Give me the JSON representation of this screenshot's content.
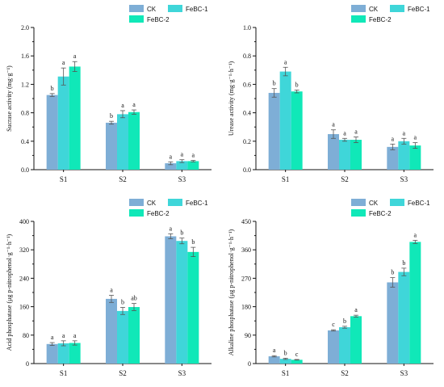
{
  "colors": {
    "CK": "#7eaed6",
    "FeBC-1": "#3fd6d9",
    "FeBC-2": "#10e8b8",
    "axis": "#111111",
    "errorbar": "#555555"
  },
  "chart_data": [
    {
      "type": "bar",
      "ylabel": "Sucrase activity (mg·g⁻¹)",
      "ylim": [
        0,
        2.0
      ],
      "yticks": [
        "0.0",
        "0.4",
        "0.8",
        "1.2",
        "1.6",
        "2.0"
      ],
      "categories": [
        "S1",
        "S2",
        "S3"
      ],
      "legend": [
        "CK",
        "FeBC-1",
        "FeBC-2"
      ],
      "legend_position": "top-right",
      "series": [
        {
          "name": "CK",
          "values": [
            1.05,
            0.66,
            0.09
          ],
          "errors": [
            0.02,
            0.02,
            0.02
          ],
          "letters": [
            "b",
            "b",
            "a"
          ]
        },
        {
          "name": "FeBC-1",
          "values": [
            1.31,
            0.78,
            0.12
          ],
          "errors": [
            0.12,
            0.05,
            0.02
          ],
          "letters": [
            "a",
            "a",
            "a"
          ]
        },
        {
          "name": "FeBC-2",
          "values": [
            1.45,
            0.81,
            0.12
          ],
          "errors": [
            0.07,
            0.03,
            0.01
          ],
          "letters": [
            "a",
            "a",
            "a"
          ]
        }
      ]
    },
    {
      "type": "bar",
      "ylabel": "Urease activity (mg·g⁻¹·h⁻¹)",
      "ylim": [
        0,
        1.0
      ],
      "yticks": [
        "0.0",
        "0.2",
        "0.4",
        "0.6",
        "0.8",
        "1.0"
      ],
      "categories": [
        "S1",
        "S2",
        "S3"
      ],
      "legend": [
        "CK",
        "FeBC-1",
        "FeBC-2"
      ],
      "legend_position": "top-right",
      "series": [
        {
          "name": "CK",
          "values": [
            0.54,
            0.25,
            0.16
          ],
          "errors": [
            0.03,
            0.03,
            0.02
          ],
          "letters": [
            "b",
            "a",
            "a"
          ]
        },
        {
          "name": "FeBC-1",
          "values": [
            0.69,
            0.21,
            0.2
          ],
          "errors": [
            0.03,
            0.01,
            0.02
          ],
          "letters": [
            "a",
            "a",
            "a"
          ]
        },
        {
          "name": "FeBC-2",
          "values": [
            0.55,
            0.21,
            0.17
          ],
          "errors": [
            0.01,
            0.02,
            0.02
          ],
          "letters": [
            "b",
            "a",
            "a"
          ]
        }
      ]
    },
    {
      "type": "bar",
      "ylabel": "Acid phosphatase (μg p-nitrophenol·g⁻¹·h⁻¹)",
      "ylim": [
        0,
        400
      ],
      "yticks": [
        "0",
        "80",
        "160",
        "240",
        "320",
        "400"
      ],
      "categories": [
        "S1",
        "S2",
        "S3"
      ],
      "legend": [
        "CK",
        "FeBC-1",
        "FeBC-2"
      ],
      "legend_position": "top-right",
      "series": [
        {
          "name": "CK",
          "values": [
            55,
            182,
            358
          ],
          "errors": [
            4,
            10,
            7
          ],
          "letters": [
            "a",
            "a",
            "a"
          ]
        },
        {
          "name": "FeBC-1",
          "values": [
            57,
            148,
            345
          ],
          "errors": [
            7,
            10,
            8
          ],
          "letters": [
            "a",
            "b",
            "b"
          ]
        },
        {
          "name": "FeBC-2",
          "values": [
            58,
            159,
            314
          ],
          "errors": [
            6,
            10,
            13
          ],
          "letters": [
            "a",
            "ab",
            "b"
          ]
        }
      ]
    },
    {
      "type": "bar",
      "ylabel": "Alkaline phosphatase (μg p-nitrophenol·g⁻¹·h⁻¹)",
      "ylim": [
        0,
        450
      ],
      "yticks": [
        "0",
        "90",
        "180",
        "270",
        "360",
        "450"
      ],
      "categories": [
        "S1",
        "S2",
        "S3"
      ],
      "legend": [
        "CK",
        "FeBC-1",
        "FeBC-2"
      ],
      "legend_position": "top-right",
      "series": [
        {
          "name": "CK",
          "values": [
            23,
            105,
            257
          ],
          "errors": [
            2,
            2,
            15
          ],
          "letters": [
            "a",
            "c",
            "b"
          ]
        },
        {
          "name": "FeBC-1",
          "values": [
            15,
            115,
            290
          ],
          "errors": [
            2,
            3,
            12
          ],
          "letters": [
            "b",
            "b",
            "b"
          ]
        },
        {
          "name": "FeBC-2",
          "values": [
            12,
            150,
            385
          ],
          "errors": [
            1,
            3,
            5
          ],
          "letters": [
            "c",
            "a",
            "a"
          ]
        }
      ]
    }
  ]
}
